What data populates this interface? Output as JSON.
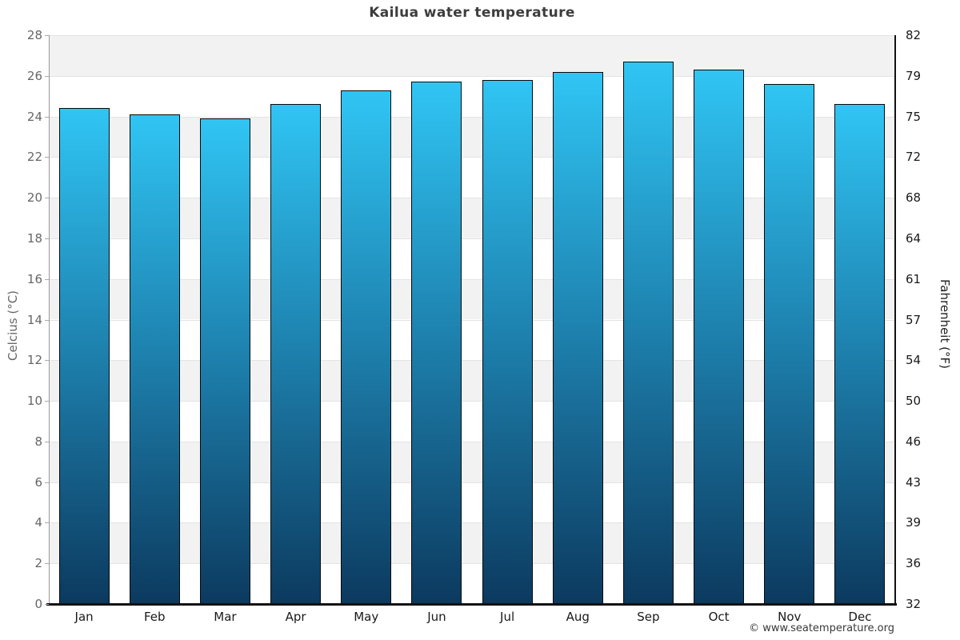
{
  "page": {
    "copyright": "© www.seatemperature.org"
  },
  "chart_data": {
    "type": "bar",
    "title": "Kailua water temperature",
    "categories": [
      "Jan",
      "Feb",
      "Mar",
      "Apr",
      "May",
      "Jun",
      "Jul",
      "Aug",
      "Sep",
      "Oct",
      "Nov",
      "Dec"
    ],
    "values": [
      24.4,
      24.1,
      23.9,
      24.6,
      25.3,
      25.7,
      25.8,
      26.2,
      26.7,
      26.3,
      25.6,
      24.6
    ],
    "ylabel_left": "Celcius (°C)",
    "ylabel_right": "Fahrenheit (°F)",
    "ylim": [
      0,
      28
    ],
    "yticks_celsius": [
      0,
      2,
      4,
      6,
      8,
      10,
      12,
      14,
      16,
      18,
      20,
      22,
      24,
      26,
      28
    ],
    "yticks_fahrenheit": [
      "32",
      "36",
      "39",
      "43",
      "46",
      "50",
      "54",
      "57",
      "61",
      "64",
      "68",
      "72",
      "75",
      "79",
      "82"
    ],
    "grid": "horizontal alternating gray bands every 2°C with light gridlines",
    "legend": "none",
    "colors": {
      "bar_gradient_top": "#30c5f4",
      "bar_gradient_mid": "#1e82af",
      "bar_gradient_bottom": "#0c3a5f",
      "bar_outline": "#0a0a0a",
      "band_fill": "#f2f2f2",
      "gridline": "#e3e3e3",
      "left_axis_line": "#999999",
      "right_axis_line": "#111111",
      "bottom_axis_line": "#111111",
      "title_color": "#3d3d3d",
      "left_tick_color": "#666666",
      "right_tick_color": "#1a1a1a",
      "month_label_color": "#1a1a1a"
    }
  }
}
